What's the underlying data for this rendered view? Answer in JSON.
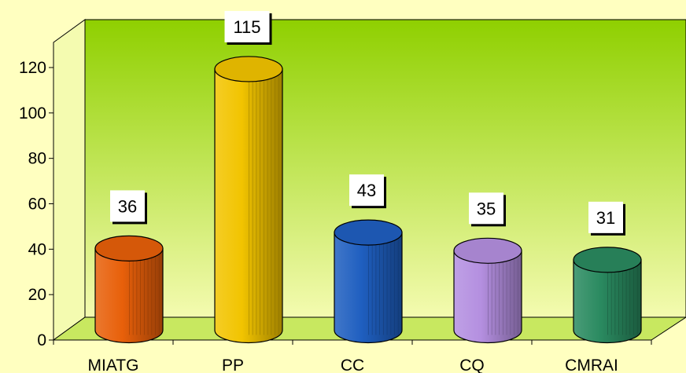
{
  "chart_data": {
    "type": "bar",
    "title": "",
    "xlabel": "",
    "ylabel": "",
    "categories": [
      "MIATG",
      "PP",
      "CC",
      "CQ",
      "CMRAI"
    ],
    "values": [
      36,
      115,
      43,
      35,
      31
    ],
    "data_labels": [
      "36",
      "115",
      "43",
      "35",
      "31"
    ],
    "ylim": [
      0,
      120
    ],
    "yticks": [
      0,
      20,
      40,
      60,
      80,
      100,
      120
    ],
    "grid": false,
    "legend": "none",
    "style": "3d-cylinder",
    "colors": {
      "page_background": "#ffffc0",
      "wall_top": "#8fd000",
      "wall_bottom": "#f4fbb0",
      "floor": "#c8e860",
      "bars": [
        "#e8600a",
        "#f2c400",
        "#1f5fc0",
        "#b48fe0",
        "#2a8a60"
      ]
    }
  }
}
